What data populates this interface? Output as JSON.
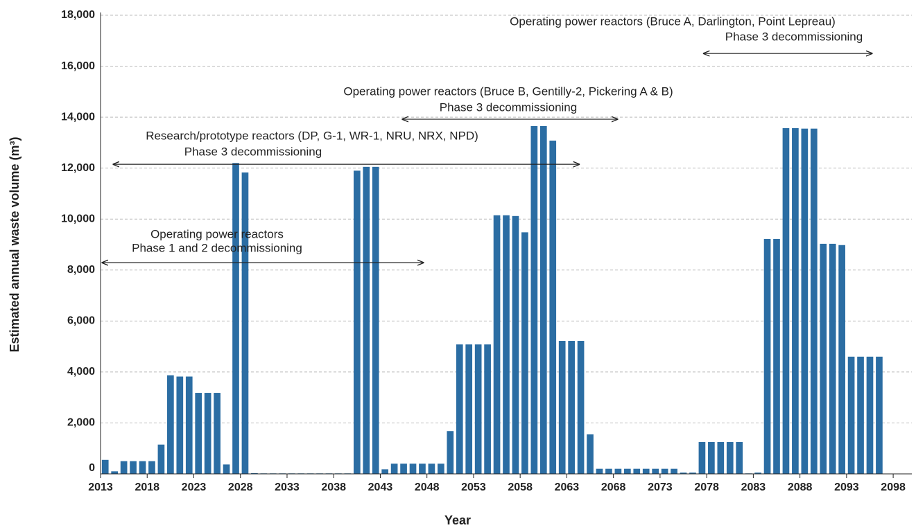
{
  "chart_data": {
    "type": "bar",
    "xlabel": "Year",
    "ylabel": "Estimated annual waste volume (m³)",
    "color": "#2b6da3",
    "grid": true,
    "xlim": [
      2013,
      2100
    ],
    "xticks": [
      2013,
      2018,
      2023,
      2028,
      2033,
      2038,
      2043,
      2048,
      2053,
      2058,
      2063,
      2068,
      2073,
      2078,
      2083,
      2088,
      2093,
      2098
    ],
    "ylim": [
      0,
      18000
    ],
    "yticks": [
      0,
      {
        "value": 2000,
        "label": "2,000"
      },
      {
        "value": 4000,
        "label": "4,000"
      },
      {
        "value": 6000,
        "label": "6,000"
      },
      {
        "value": 8000,
        "label": "8,000"
      },
      {
        "value": 10000,
        "label": "10,000"
      },
      {
        "value": 12000,
        "label": "12,000"
      },
      {
        "value": 14000,
        "label": "14,000"
      },
      {
        "value": 16000,
        "label": "16,000"
      },
      {
        "value": 18000,
        "label": "18,000"
      }
    ],
    "x": [
      2013,
      2014,
      2015,
      2016,
      2017,
      2018,
      2019,
      2020,
      2021,
      2022,
      2023,
      2024,
      2025,
      2026,
      2027,
      2028,
      2029,
      2030,
      2031,
      2032,
      2033,
      2034,
      2035,
      2036,
      2037,
      2038,
      2039,
      2040,
      2041,
      2042,
      2043,
      2044,
      2045,
      2046,
      2047,
      2048,
      2049,
      2050,
      2051,
      2052,
      2053,
      2054,
      2055,
      2056,
      2057,
      2058,
      2059,
      2060,
      2061,
      2062,
      2063,
      2064,
      2065,
      2066,
      2067,
      2068,
      2069,
      2070,
      2071,
      2072,
      2073,
      2074,
      2075,
      2076,
      2077,
      2078,
      2079,
      2080,
      2081,
      2082,
      2083,
      2084,
      2085,
      2086,
      2087,
      2088,
      2089,
      2090,
      2091,
      2092,
      2093,
      2094,
      2095,
      2096
    ],
    "values": [
      550,
      100,
      500,
      500,
      500,
      500,
      1150,
      3870,
      3820,
      3820,
      3180,
      3180,
      3180,
      370,
      12200,
      11830,
      30,
      20,
      20,
      20,
      20,
      20,
      20,
      20,
      20,
      20,
      20,
      11900,
      12050,
      12050,
      180,
      400,
      400,
      400,
      400,
      400,
      400,
      1680,
      5080,
      5080,
      5080,
      5080,
      10150,
      10150,
      10120,
      9480,
      13650,
      13650,
      13080,
      5220,
      5220,
      5220,
      1550,
      200,
      200,
      200,
      200,
      200,
      200,
      200,
      200,
      200,
      50,
      50,
      1250,
      1250,
      1250,
      1250,
      1250,
      20,
      50,
      9220,
      9220,
      13570,
      13570,
      13550,
      13550,
      9030,
      9030,
      8980,
      4600,
      4600,
      4600,
      4600
    ],
    "annotations": [
      {
        "lines": [
          "Operating power reactors",
          "Phase 1 and 2 decommissioning"
        ],
        "from": 2013.1,
        "to": 2047.7,
        "y": 8290
      },
      {
        "lines": [
          "Research/prototype reactors (DP, G-1, WR-1, NRU, NRX, NPD)",
          "Phase 3 decommissioning"
        ],
        "from": 2014.3,
        "to": 2064.4,
        "y": 12150
      },
      {
        "lines": [
          "Operating power reactors (Bruce B, Gentilly-2, Pickering A & B)",
          "Phase 3 decommissioning"
        ],
        "from": 2045.3,
        "to": 2068.5,
        "y": 13920
      },
      {
        "lines": [
          "Operating power reactors (Bruce A, Darlington, Point Lepreau)",
          "Phase 3 decommissioning"
        ],
        "from": 2077.6,
        "to": 2095.8,
        "y": 16500
      }
    ]
  }
}
